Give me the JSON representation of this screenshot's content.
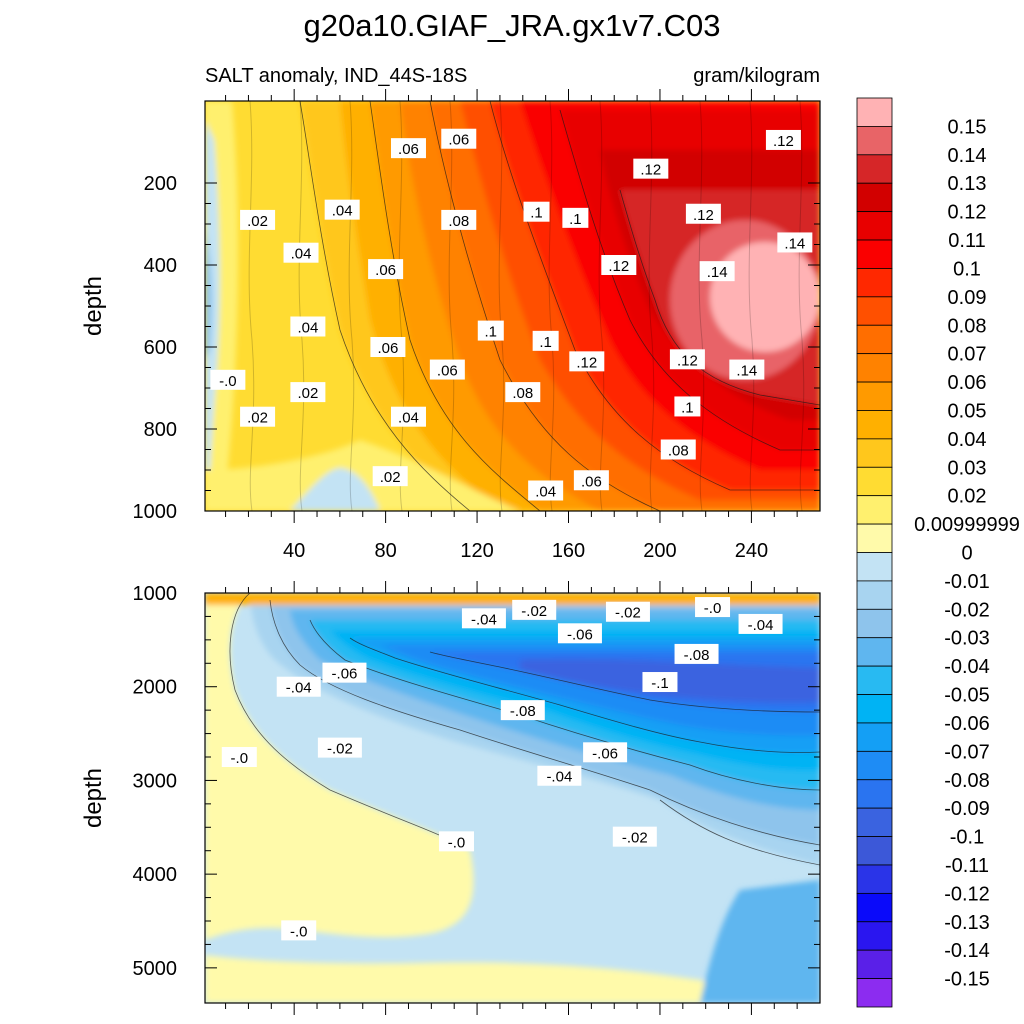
{
  "chart_data": [
    {
      "type": "heatmap",
      "panel": "upper",
      "title": "g20a10.GIAF_JRA.gx1v7.C03",
      "left_string": "SALT anomaly, IND_44S-18S",
      "right_string": "gram/kilogram",
      "xlabel": "",
      "ylabel": "depth",
      "xlim": [
        1,
        270
      ],
      "ylim": [
        1000,
        0
      ],
      "x_ticks": [
        40,
        80,
        120,
        160,
        200,
        240
      ],
      "y_ticks": [
        200,
        400,
        600,
        800,
        1000
      ],
      "x_tick_labels": [
        "40",
        "80",
        "120",
        "160",
        "200",
        "240"
      ],
      "y_tick_labels": [
        "200",
        "400",
        "600",
        "800",
        "1000"
      ],
      "contour_labels": [
        {
          "text": ".06",
          "x": 90,
          "y": 115
        },
        {
          "text": ".06",
          "x": 112,
          "y": 92
        },
        {
          "text": ".12",
          "x": 254,
          "y": 95
        },
        {
          "text": ".12",
          "x": 196,
          "y": 165
        },
        {
          "text": ".02",
          "x": 24,
          "y": 290
        },
        {
          "text": ".04",
          "x": 61,
          "y": 265
        },
        {
          "text": ".08",
          "x": 112,
          "y": 290
        },
        {
          "text": ".1",
          "x": 146,
          "y": 270
        },
        {
          "text": ".1",
          "x": 163,
          "y": 285
        },
        {
          "text": ".12",
          "x": 219,
          "y": 275
        },
        {
          "text": ".14",
          "x": 259,
          "y": 345
        },
        {
          "text": ".04",
          "x": 43,
          "y": 370
        },
        {
          "text": ".06",
          "x": 80,
          "y": 410
        },
        {
          "text": ".12",
          "x": 182,
          "y": 400
        },
        {
          "text": ".14",
          "x": 225,
          "y": 415
        },
        {
          "text": ".04",
          "x": 46,
          "y": 550
        },
        {
          "text": ".1",
          "x": 126,
          "y": 560
        },
        {
          "text": ".06",
          "x": 81,
          "y": 600
        },
        {
          "text": ".1",
          "x": 150,
          "y": 585
        },
        {
          "text": ".12",
          "x": 168,
          "y": 635
        },
        {
          "text": ".12",
          "x": 212,
          "y": 630
        },
        {
          "text": "-.0",
          "x": 11,
          "y": 680
        },
        {
          "text": ".06",
          "x": 107,
          "y": 655
        },
        {
          "text": ".14",
          "x": 238,
          "y": 655
        },
        {
          "text": ".02",
          "x": 46,
          "y": 710
        },
        {
          "text": ".08",
          "x": 140,
          "y": 710
        },
        {
          "text": ".02",
          "x": 24,
          "y": 770
        },
        {
          "text": ".1",
          "x": 212,
          "y": 745
        },
        {
          "text": ".04",
          "x": 90,
          "y": 770
        },
        {
          "text": ".08",
          "x": 208,
          "y": 850
        },
        {
          "text": ".02",
          "x": 82,
          "y": 915
        },
        {
          "text": ".06",
          "x": 170,
          "y": 925
        },
        {
          "text": ".04",
          "x": 150,
          "y": 950
        }
      ]
    },
    {
      "type": "heatmap",
      "panel": "lower",
      "xlabel": "",
      "ylabel": "depth",
      "xlim": [
        1,
        270
      ],
      "ylim": [
        5375,
        1000
      ],
      "y_ticks": [
        1000,
        2000,
        3000,
        4000,
        5000
      ],
      "y_tick_labels": [
        "1000",
        "2000",
        "3000",
        "4000",
        "5000"
      ],
      "contour_labels": [
        {
          "text": "-.02",
          "x": 145,
          "y": 1180
        },
        {
          "text": "-.02",
          "x": 186,
          "y": 1200
        },
        {
          "text": "-.0",
          "x": 223,
          "y": 1150
        },
        {
          "text": "-.04",
          "x": 123,
          "y": 1270
        },
        {
          "text": "-.04",
          "x": 244,
          "y": 1330
        },
        {
          "text": "-.06",
          "x": 165,
          "y": 1430
        },
        {
          "text": "-.08",
          "x": 216,
          "y": 1650
        },
        {
          "text": "-.06",
          "x": 62,
          "y": 1850
        },
        {
          "text": "-.1",
          "x": 200,
          "y": 1950
        },
        {
          "text": "-.04",
          "x": 42,
          "y": 2000
        },
        {
          "text": "-.08",
          "x": 140,
          "y": 2250
        },
        {
          "text": "-.02",
          "x": 60,
          "y": 2650
        },
        {
          "text": "-.06",
          "x": 176,
          "y": 2700
        },
        {
          "text": "-.0",
          "x": 16,
          "y": 2750
        },
        {
          "text": "-.04",
          "x": 156,
          "y": 2950
        },
        {
          "text": "-.02",
          "x": 189,
          "y": 3600
        },
        {
          "text": "-.0",
          "x": 111,
          "y": 3650
        },
        {
          "text": "-.0",
          "x": 42,
          "y": 4600
        }
      ]
    }
  ],
  "colorbar": {
    "levels": [
      "0.15",
      "0.14",
      "0.13",
      "0.12",
      "0.11",
      "0.1",
      "0.09",
      "0.08",
      "0.07",
      "0.06",
      "0.05",
      "0.04",
      "0.03",
      "0.02",
      "0.00999999",
      "0",
      "-0.01",
      "-0.02",
      "-0.03",
      "-0.04",
      "-0.05",
      "-0.06",
      "-0.07",
      "-0.08",
      "-0.09",
      "-0.1",
      "-0.11",
      "-0.12",
      "-0.13",
      "-0.14",
      "-0.15"
    ],
    "colors": [
      "#ffb2b4",
      "#e86467",
      "#d62628",
      "#d20000",
      "#e80000",
      "#fa0000",
      "#ff2800",
      "#ff5000",
      "#ff6e00",
      "#ff8200",
      "#ff9a00",
      "#ffb000",
      "#ffc71c",
      "#ffdc32",
      "#fff06e",
      "#fffaaa",
      "#c3e3f4",
      "#a8d4f0",
      "#8ec4ec",
      "#5fb6ef",
      "#28baf2",
      "#00b3f4",
      "#149ff5",
      "#1e8cf5",
      "#2a74f0",
      "#3a63e0",
      "#3c58d8",
      "#2a34e8",
      "#0a0afa",
      "#2a16f0",
      "#5a20e8",
      "#8c2cf0"
    ]
  }
}
